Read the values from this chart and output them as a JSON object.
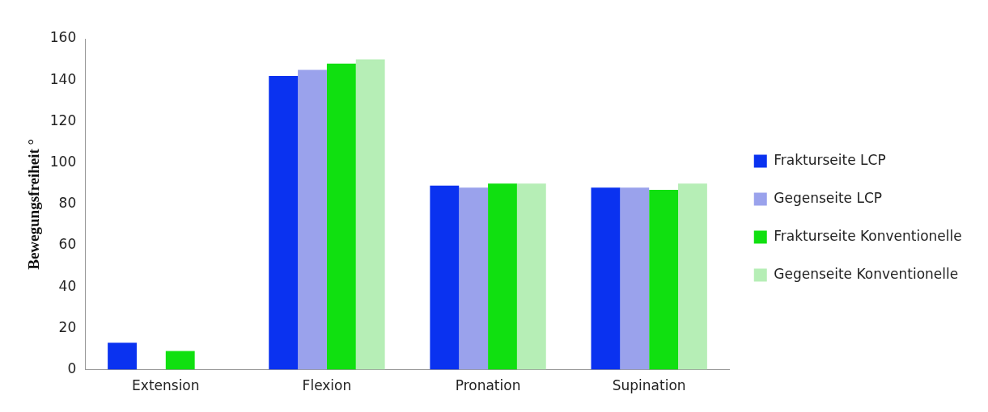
{
  "chart_data": {
    "type": "bar",
    "ylabel": "Bewegungsfreiheit °",
    "categories": [
      "Extension",
      "Flexion",
      "Pronation",
      "Supination"
    ],
    "series": [
      {
        "name": "Frakturseite LCP",
        "color": "#0a32f0",
        "values": [
          13,
          142,
          89,
          88
        ]
      },
      {
        "name": "Gegenseite LCP",
        "color": "#9aa2ec",
        "values": [
          0,
          145,
          88,
          88
        ]
      },
      {
        "name": "Frakturseite Konventionelle",
        "color": "#10e010",
        "values": [
          9,
          148,
          90,
          87
        ]
      },
      {
        "name": "Gegenseite Konventionelle",
        "color": "#b6eeb6",
        "values": [
          0,
          150,
          90,
          90
        ]
      }
    ],
    "ylim": [
      0,
      160
    ],
    "yticks": [
      0,
      20,
      40,
      60,
      80,
      100,
      120,
      140,
      160
    ],
    "grid": false,
    "legend": "right"
  }
}
